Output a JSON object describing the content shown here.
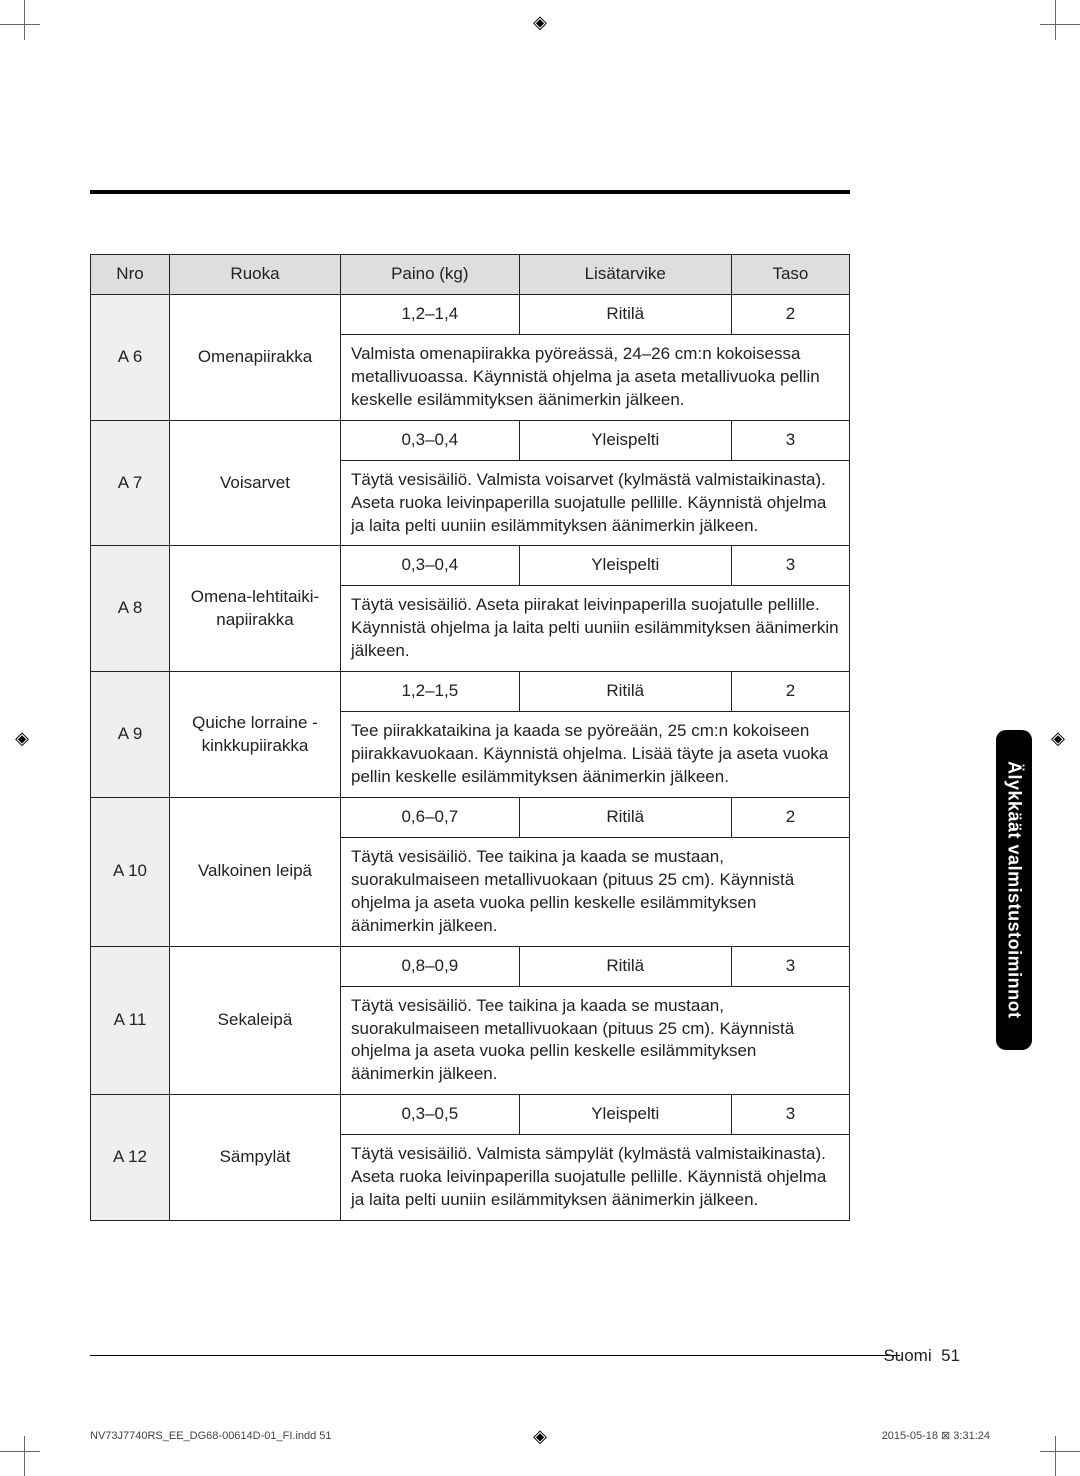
{
  "table": {
    "headers": {
      "nro": "Nro",
      "food": "Ruoka",
      "weight": "Paino (kg)",
      "accessory": "Lisätarvike",
      "level": "Taso"
    },
    "rows": [
      {
        "nro": "A 6",
        "food": "Omenapiirakka",
        "weight": "1,2–1,4",
        "accessory": "Ritilä",
        "level": "2",
        "instr": "Valmista omenapiirakka pyöreässä, 24–26 cm:n kokoisessa metallivuoassa. Käynnistä ohjelma ja aseta metallivuoka pellin keskelle esilämmityksen äänimerkin jälkeen."
      },
      {
        "nro": "A 7",
        "food": "Voisarvet",
        "weight": "0,3–0,4",
        "accessory": "Yleispelti",
        "level": "3",
        "instr": "Täytä vesisäiliö. Valmista voisarvet (kylmästä valmistaikinasta). Aseta ruoka leivinpaperilla suojatulle pellille. Käynnistä ohjelma ja laita pelti uuniin esilämmityksen äänimerkin jälkeen."
      },
      {
        "nro": "A 8",
        "food": "Omena-lehtitaiki-napiirakka",
        "weight": "0,3–0,4",
        "accessory": "Yleispelti",
        "level": "3",
        "instr": "Täytä vesisäiliö. Aseta piirakat leivinpaperilla suojatulle pellille. Käynnistä ohjelma ja laita pelti uuniin esilämmityksen äänimerkin jälkeen."
      },
      {
        "nro": "A 9",
        "food": "Quiche lorraine -kinkkupiirakka",
        "weight": "1,2–1,5",
        "accessory": "Ritilä",
        "level": "2",
        "instr": "Tee piirakkataikina ja kaada se pyöreään, 25 cm:n kokoiseen piirakkavuokaan. Käynnistä ohjelma. Lisää täyte ja aseta vuoka pellin keskelle esilämmityksen äänimerkin jälkeen."
      },
      {
        "nro": "A 10",
        "food": "Valkoinen leipä",
        "weight": "0,6–0,7",
        "accessory": "Ritilä",
        "level": "2",
        "instr": "Täytä vesisäiliö. Tee taikina ja kaada se mustaan, suorakulmaiseen metallivuokaan (pituus 25 cm). Käynnistä ohjelma ja aseta vuoka pellin keskelle esilämmityksen äänimerkin jälkeen."
      },
      {
        "nro": "A 11",
        "food": "Sekaleipä",
        "weight": "0,8–0,9",
        "accessory": "Ritilä",
        "level": "3",
        "instr": "Täytä vesisäiliö. Tee taikina ja kaada se mustaan, suorakulmaiseen metallivuokaan (pituus 25 cm). Käynnistä ohjelma ja aseta vuoka pellin keskelle esilämmityksen äänimerkin jälkeen."
      },
      {
        "nro": "A 12",
        "food": "Sämpylät",
        "weight": "0,3–0,5",
        "accessory": "Yleispelti",
        "level": "3",
        "instr": "Täytä vesisäiliö. Valmista sämpylät (kylmästä valmistaikinasta). Aseta ruoka leivinpaperilla suojatulle pellille. Käynnistä ohjelma ja laita pelti uuniin esilämmityksen äänimerkin jälkeen."
      }
    ]
  },
  "side_tab": "Älykkäät valmistustoiminnot",
  "footer": {
    "lang": "Suomi",
    "page": "51"
  },
  "imprint": {
    "left": "NV73J7740RS_EE_DG68-00614D-01_FI.indd   51",
    "right": "2015-05-18   ⊠ 3:31:24"
  },
  "colors": {
    "header_bg": "#dddee0",
    "nro_bg": "#eeeff1",
    "tab_bg": "#000000",
    "tab_fg": "#ffffff",
    "border": "#222222",
    "page_bg": "#ffffff"
  }
}
